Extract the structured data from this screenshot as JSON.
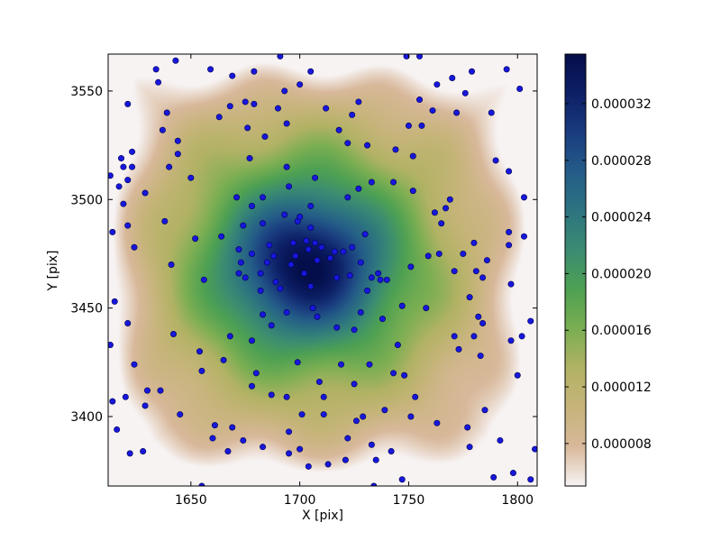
{
  "chart_data": {
    "type": "heatmap",
    "title": "",
    "xlabel": "X [pix]",
    "ylabel": "Y [pix]",
    "xlim": [
      1612,
      1809
    ],
    "ylim": [
      3368,
      3567
    ],
    "x_ticks": [
      1650,
      1700,
      1750,
      1800
    ],
    "y_ticks": [
      3400,
      3450,
      3500,
      3550
    ],
    "colorbar": {
      "range": [
        5e-06,
        3.55e-05
      ],
      "ticks": [
        8e-06,
        1.2e-05,
        1.6e-05,
        2e-05,
        2.4e-05,
        2.8e-05,
        3.2e-05
      ],
      "tick_labels": [
        "0.000008",
        "0.000012",
        "0.000016",
        "0.000020",
        "0.000024",
        "0.000028",
        "0.000032"
      ],
      "colormap": "gist_earth_r",
      "colors": [
        "#f7f3f3",
        "#d8b89a",
        "#c6b47a",
        "#b2b264",
        "#7aae52",
        "#4ea152",
        "#3b8c72",
        "#2d7480",
        "#245c88",
        "#1a3c7f",
        "#0d1f66",
        "#040e4a"
      ]
    },
    "field_peak": {
      "x": 1703,
      "y": 3470,
      "value": 3.55e-05
    },
    "field_edge_value": 5e-06,
    "marker_color": "#1717dc",
    "marker_edge": "#000050",
    "points": [
      [
        1613,
        3511
      ],
      [
        1614,
        3485
      ],
      [
        1613,
        3433
      ],
      [
        1614,
        3407
      ],
      [
        1616,
        3394
      ],
      [
        1615,
        3453
      ],
      [
        1617,
        3506
      ],
      [
        1618,
        3519
      ],
      [
        1619,
        3498
      ],
      [
        1619,
        3515
      ],
      [
        1620,
        3409
      ],
      [
        1621,
        3509
      ],
      [
        1621,
        3488
      ],
      [
        1621,
        3443
      ],
      [
        1621,
        3544
      ],
      [
        1622,
        3383
      ],
      [
        1623,
        3522
      ],
      [
        1623,
        3515
      ],
      [
        1624,
        3478
      ],
      [
        1624,
        3424
      ],
      [
        1628,
        3384
      ],
      [
        1629,
        3503
      ],
      [
        1629,
        3405
      ],
      [
        1630,
        3412
      ],
      [
        1634,
        3560
      ],
      [
        1635,
        3554
      ],
      [
        1636,
        3412
      ],
      [
        1637,
        3532
      ],
      [
        1638,
        3490
      ],
      [
        1639,
        3540
      ],
      [
        1640,
        3515
      ],
      [
        1641,
        3470
      ],
      [
        1642,
        3438
      ],
      [
        1643,
        3564
      ],
      [
        1644,
        3521
      ],
      [
        1644,
        3527
      ],
      [
        1645,
        3401
      ],
      [
        1650,
        3510
      ],
      [
        1652,
        3482
      ],
      [
        1654,
        3430
      ],
      [
        1655,
        3368
      ],
      [
        1655,
        3421
      ],
      [
        1656,
        3463
      ],
      [
        1659,
        3560
      ],
      [
        1660,
        3390
      ],
      [
        1661,
        3396
      ],
      [
        1663,
        3538
      ],
      [
        1664,
        3483
      ],
      [
        1665,
        3426
      ],
      [
        1667,
        3384
      ],
      [
        1668,
        3543
      ],
      [
        1668,
        3437
      ],
      [
        1669,
        3557
      ],
      [
        1669,
        3395
      ],
      [
        1671,
        3501
      ],
      [
        1672,
        3477
      ],
      [
        1672,
        3466
      ],
      [
        1673,
        3471
      ],
      [
        1674,
        3389
      ],
      [
        1674,
        3488
      ],
      [
        1675,
        3545
      ],
      [
        1675,
        3464
      ],
      [
        1676,
        3533
      ],
      [
        1677,
        3519
      ],
      [
        1678,
        3497
      ],
      [
        1678,
        3475
      ],
      [
        1678,
        3435
      ],
      [
        1678,
        3414
      ],
      [
        1679,
        3559
      ],
      [
        1679,
        3544
      ],
      [
        1680,
        3420
      ],
      [
        1682,
        3466
      ],
      [
        1682,
        3458
      ],
      [
        1683,
        3447
      ],
      [
        1683,
        3501
      ],
      [
        1683,
        3489
      ],
      [
        1683,
        3386
      ],
      [
        1684,
        3529
      ],
      [
        1685,
        3471
      ],
      [
        1686,
        3479
      ],
      [
        1687,
        3442
      ],
      [
        1687,
        3410
      ],
      [
        1688,
        3474
      ],
      [
        1689,
        3462
      ],
      [
        1690,
        3542
      ],
      [
        1691,
        3566
      ],
      [
        1691,
        3459
      ],
      [
        1693,
        3550
      ],
      [
        1693,
        3493
      ],
      [
        1694,
        3535
      ],
      [
        1694,
        3515
      ],
      [
        1694,
        3448
      ],
      [
        1694,
        3409
      ],
      [
        1695,
        3506
      ],
      [
        1695,
        3393
      ],
      [
        1695,
        3383
      ],
      [
        1696,
        3470
      ],
      [
        1697,
        3480
      ],
      [
        1698,
        3474
      ],
      [
        1699,
        3490
      ],
      [
        1699,
        3425
      ],
      [
        1700,
        3553
      ],
      [
        1700,
        3492
      ],
      [
        1700,
        3385
      ],
      [
        1701,
        3401
      ],
      [
        1702,
        3466
      ],
      [
        1703,
        3481
      ],
      [
        1704,
        3477
      ],
      [
        1704,
        3377
      ],
      [
        1705,
        3559
      ],
      [
        1705,
        3497
      ],
      [
        1705,
        3460
      ],
      [
        1705,
        3487
      ],
      [
        1706,
        3450
      ],
      [
        1707,
        3480
      ],
      [
        1707,
        3510
      ],
      [
        1708,
        3446
      ],
      [
        1708,
        3472
      ],
      [
        1709,
        3416
      ],
      [
        1710,
        3478
      ],
      [
        1711,
        3409
      ],
      [
        1711,
        3401
      ],
      [
        1712,
        3542
      ],
      [
        1713,
        3378
      ],
      [
        1714,
        3473
      ],
      [
        1716,
        3476
      ],
      [
        1717,
        3464
      ],
      [
        1717,
        3441
      ],
      [
        1718,
        3532
      ],
      [
        1719,
        3424
      ],
      [
        1720,
        3476
      ],
      [
        1721,
        3380
      ],
      [
        1722,
        3526
      ],
      [
        1722,
        3501
      ],
      [
        1722,
        3390
      ],
      [
        1723,
        3465
      ],
      [
        1724,
        3478
      ],
      [
        1724,
        3539
      ],
      [
        1725,
        3415
      ],
      [
        1725,
        3440
      ],
      [
        1726,
        3398
      ],
      [
        1727,
        3545
      ],
      [
        1727,
        3505
      ],
      [
        1728,
        3471
      ],
      [
        1728,
        3448
      ],
      [
        1729,
        3400
      ],
      [
        1730,
        3484
      ],
      [
        1731,
        3458
      ],
      [
        1731,
        3525
      ],
      [
        1732,
        3424
      ],
      [
        1733,
        3508
      ],
      [
        1733,
        3464
      ],
      [
        1733,
        3387
      ],
      [
        1734,
        3368
      ],
      [
        1735,
        3380
      ],
      [
        1736,
        3466
      ],
      [
        1737,
        3463
      ],
      [
        1738,
        3445
      ],
      [
        1739,
        3403
      ],
      [
        1740,
        3463
      ],
      [
        1742,
        3384
      ],
      [
        1743,
        3508
      ],
      [
        1743,
        3420
      ],
      [
        1744,
        3523
      ],
      [
        1745,
        3433
      ],
      [
        1747,
        3451
      ],
      [
        1747,
        3371
      ],
      [
        1748,
        3419
      ],
      [
        1749,
        3566
      ],
      [
        1750,
        3534
      ],
      [
        1751,
        3400
      ],
      [
        1751,
        3469
      ],
      [
        1752,
        3504
      ],
      [
        1752,
        3520
      ],
      [
        1753,
        3409
      ],
      [
        1755,
        3566
      ],
      [
        1755,
        3546
      ],
      [
        1756,
        3534
      ],
      [
        1758,
        3450
      ],
      [
        1759,
        3474
      ],
      [
        1761,
        3541
      ],
      [
        1762,
        3494
      ],
      [
        1763,
        3553
      ],
      [
        1763,
        3397
      ],
      [
        1764,
        3475
      ],
      [
        1765,
        3489
      ],
      [
        1767,
        3496
      ],
      [
        1769,
        3500
      ],
      [
        1770,
        3556
      ],
      [
        1771,
        3437
      ],
      [
        1771,
        3467
      ],
      [
        1772,
        3540
      ],
      [
        1773,
        3431
      ],
      [
        1775,
        3475
      ],
      [
        1776,
        3549
      ],
      [
        1777,
        3395
      ],
      [
        1778,
        3386
      ],
      [
        1778,
        3455
      ],
      [
        1779,
        3559
      ],
      [
        1780,
        3480
      ],
      [
        1780,
        3437
      ],
      [
        1781,
        3467
      ],
      [
        1782,
        3446
      ],
      [
        1783,
        3428
      ],
      [
        1784,
        3443
      ],
      [
        1784,
        3464
      ],
      [
        1785,
        3403
      ],
      [
        1786,
        3472
      ],
      [
        1788,
        3540
      ],
      [
        1789,
        3372
      ],
      [
        1790,
        3518
      ],
      [
        1792,
        3389
      ],
      [
        1795,
        3560
      ],
      [
        1796,
        3485
      ],
      [
        1796,
        3479
      ],
      [
        1796,
        3513
      ],
      [
        1797,
        3461
      ],
      [
        1797,
        3435
      ],
      [
        1798,
        3374
      ],
      [
        1800,
        3419
      ],
      [
        1801,
        3551
      ],
      [
        1802,
        3437
      ],
      [
        1803,
        3501
      ],
      [
        1803,
        3483
      ],
      [
        1806,
        3444
      ],
      [
        1806,
        3371
      ],
      [
        1808,
        3385
      ]
    ]
  }
}
